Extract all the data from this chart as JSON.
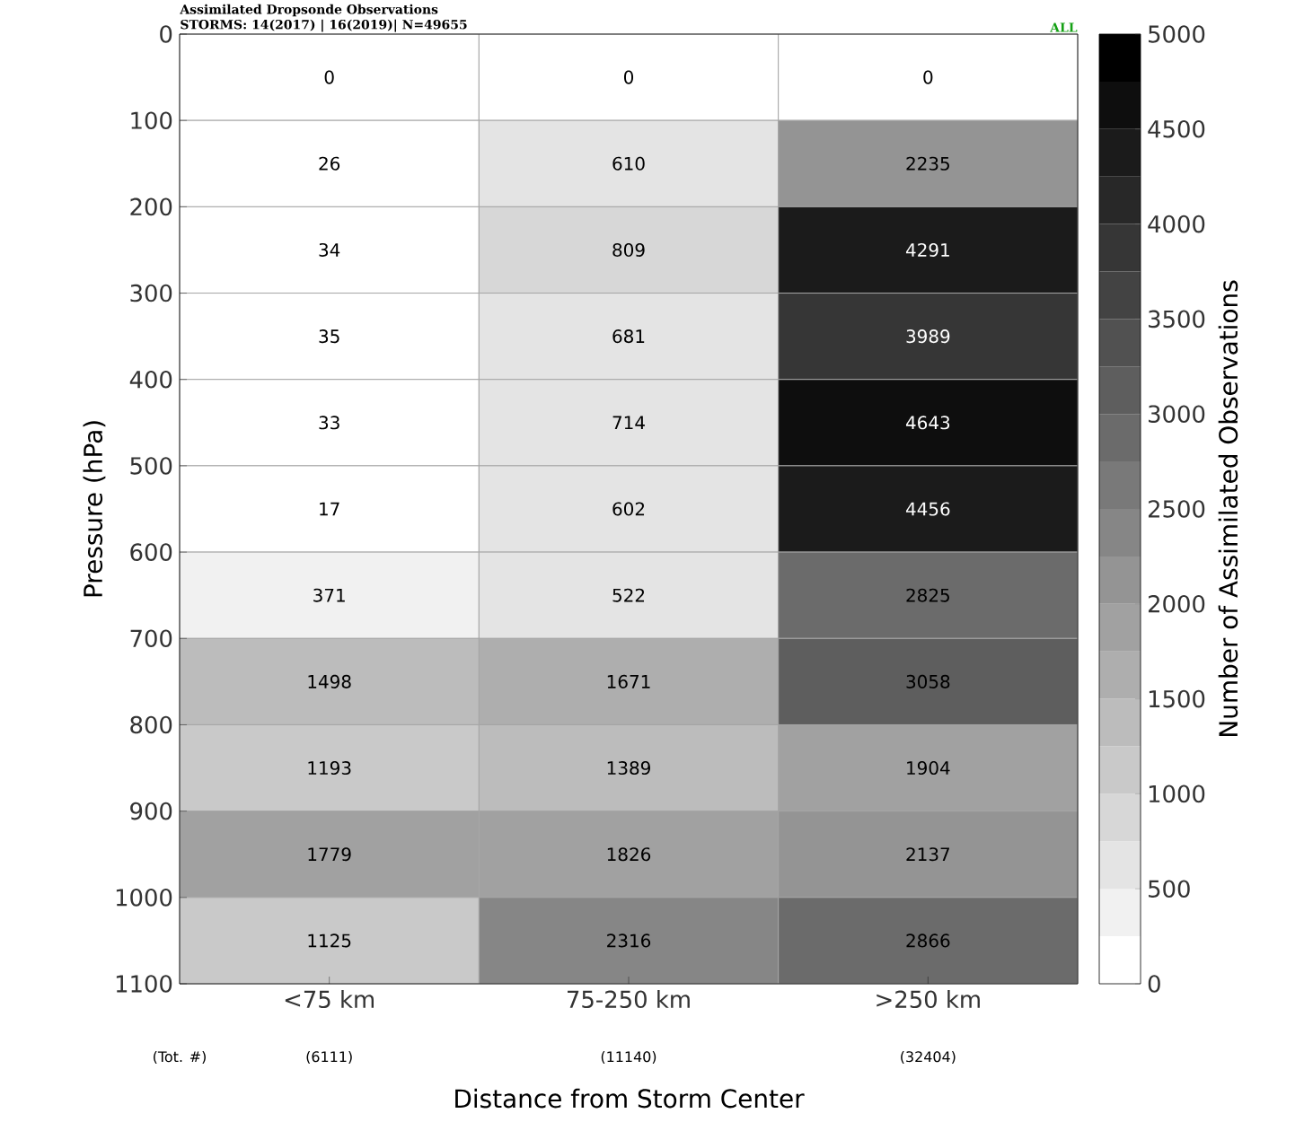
{
  "chart_data": {
    "type": "heatmap",
    "title": "Assimilated Dropsonde Observations",
    "subtitle": "STORMS: 14(2017)  |  16(2019)|  N=49655",
    "xlabel": "Distance from Storm Center",
    "ylabel": "Pressure (hPa)",
    "clabel": "Number of Assimilated Observations",
    "annotations": [
      "ALL",
      "(Tot. #)",
      "(6111)",
      "(11140)",
      "(32404)"
    ],
    "categories": [
      "<75 km",
      "75-250 km",
      ">250 km"
    ],
    "ylim": [
      1100,
      0
    ],
    "yticks": [
      0,
      100,
      200,
      300,
      400,
      500,
      600,
      700,
      800,
      900,
      1000,
      1100
    ],
    "cells": [
      [
        0,
        0,
        0
      ],
      [
        26,
        610,
        2235
      ],
      [
        34,
        809,
        4291
      ],
      [
        35,
        681,
        3989
      ],
      [
        33,
        714,
        4643
      ],
      [
        17,
        602,
        4456
      ],
      [
        371,
        522,
        2825
      ],
      [
        1498,
        1671,
        3058
      ],
      [
        1193,
        1389,
        1904
      ],
      [
        1779,
        1826,
        2137
      ],
      [
        1125,
        2316,
        2866
      ]
    ],
    "data_labels": true,
    "clim": [
      0,
      5000
    ],
    "cticks": [
      0,
      500,
      1000,
      1500,
      2000,
      2500,
      3000,
      3500,
      4000,
      4500,
      5000
    ]
  }
}
